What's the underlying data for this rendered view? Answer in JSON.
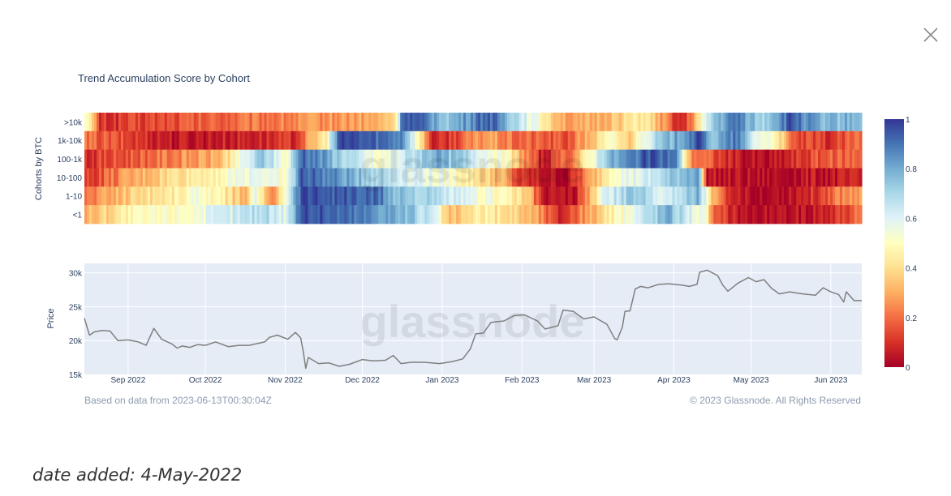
{
  "close_icon": "close-icon",
  "date_added": "date added: 4-May-2022",
  "chart_data": [
    {
      "type": "heatmap",
      "title": "Trend Accumulation Score by Cohort",
      "ylabel": "Cohorts by BTC",
      "rows": [
        ">10k",
        "1k-10k",
        "100-1k",
        "10-100",
        "1-10",
        "<1"
      ],
      "x_range": [
        "2022-08-15",
        "2023-06-13"
      ],
      "colorscale": [
        "#a50026",
        "#d73027",
        "#f46d43",
        "#fdae61",
        "#fee090",
        "#ffffbf",
        "#e0f3f8",
        "#abd9e9",
        "#74add1",
        "#4575b4",
        "#313695"
      ],
      "colorbar_ticks": [
        0,
        0.2,
        0.4,
        0.6,
        0.8,
        1
      ],
      "colorbar_tick_labels": [
        "0",
        "0.2",
        "0.4",
        "0.6",
        "0.8",
        "1"
      ],
      "segments": [
        [
          [
            0,
            0.6
          ],
          [
            2,
            0.1
          ],
          [
            38,
            0.3
          ],
          [
            40,
            0.4
          ],
          [
            41,
            0.98
          ],
          [
            47,
            0.75
          ],
          [
            52,
            0.95
          ],
          [
            60,
            0.4
          ],
          [
            63,
            0.25
          ],
          [
            68,
            0.35
          ],
          [
            72,
            0.45
          ],
          [
            77,
            0.05
          ],
          [
            81,
            0.75
          ],
          [
            84,
            0.9
          ],
          [
            87,
            0.7
          ],
          [
            91,
            0.95
          ],
          [
            95,
            0.75
          ],
          [
            100,
            0.8
          ]
        ],
        [
          [
            0,
            0.2
          ],
          [
            12,
            0.05
          ],
          [
            27,
            0.1
          ],
          [
            31,
            0.45
          ],
          [
            33,
            0.98
          ],
          [
            41,
            0.88
          ],
          [
            45,
            0.05
          ],
          [
            52,
            0.3
          ],
          [
            55,
            0.2
          ],
          [
            62,
            0.15
          ],
          [
            68,
            0.5
          ],
          [
            70,
            0.35
          ],
          [
            72,
            0.6
          ],
          [
            77,
            0.85
          ],
          [
            79,
            0.95
          ],
          [
            81,
            0.75
          ],
          [
            84,
            0.9
          ],
          [
            86,
            0.6
          ],
          [
            89,
            0.5
          ],
          [
            91,
            0.15
          ],
          [
            96,
            0.1
          ],
          [
            100,
            0.2
          ]
        ],
        [
          [
            0,
            0.1
          ],
          [
            17,
            0.3
          ],
          [
            21,
            0.6
          ],
          [
            23,
            0.75
          ],
          [
            26,
            0.5
          ],
          [
            28,
            0.95
          ],
          [
            38,
            0.5
          ],
          [
            45,
            0.8
          ],
          [
            49,
            0.7
          ],
          [
            54,
            0.5
          ],
          [
            59,
            0.05
          ],
          [
            63,
            0.25
          ],
          [
            67,
            0.75
          ],
          [
            70,
            0.85
          ],
          [
            72,
            0.95
          ],
          [
            76,
            0.9
          ],
          [
            78,
            0.25
          ],
          [
            84,
            0.05
          ],
          [
            88,
            0.02
          ],
          [
            94,
            0.15
          ],
          [
            100,
            0.2
          ]
        ],
        [
          [
            0,
            0.1
          ],
          [
            5,
            0.25
          ],
          [
            11,
            0.4
          ],
          [
            18,
            0.5
          ],
          [
            22,
            0.6
          ],
          [
            26,
            0.5
          ],
          [
            28,
            0.95
          ],
          [
            38,
            0.7
          ],
          [
            48,
            0.5
          ],
          [
            54,
            0.3
          ],
          [
            56,
            0.1
          ],
          [
            62,
            0.02
          ],
          [
            66,
            0.35
          ],
          [
            68,
            0.55
          ],
          [
            72,
            0.6
          ],
          [
            79,
            0.85
          ],
          [
            80,
            0.05
          ],
          [
            88,
            0.02
          ],
          [
            94,
            0.05
          ],
          [
            100,
            0.05
          ]
        ],
        [
          [
            0,
            0.2
          ],
          [
            7,
            0.4
          ],
          [
            12,
            0.45
          ],
          [
            15,
            0.55
          ],
          [
            21,
            0.3
          ],
          [
            22,
            0.6
          ],
          [
            24,
            0.2
          ],
          [
            28,
            0.98
          ],
          [
            38,
            0.9
          ],
          [
            39,
            0.8
          ],
          [
            46,
            0.65
          ],
          [
            50,
            0.55
          ],
          [
            54,
            0.5
          ],
          [
            57,
            0.35
          ],
          [
            59,
            0.05
          ],
          [
            63,
            0.02
          ],
          [
            67,
            0.6
          ],
          [
            71,
            0.75
          ],
          [
            75,
            0.6
          ],
          [
            79,
            0.8
          ],
          [
            81,
            0.3
          ],
          [
            83,
            0.05
          ],
          [
            88,
            0.02
          ],
          [
            94,
            0.1
          ],
          [
            96,
            0.2
          ],
          [
            100,
            0.3
          ]
        ],
        [
          [
            0,
            0.3
          ],
          [
            5,
            0.45
          ],
          [
            15,
            0.55
          ],
          [
            23,
            0.7
          ],
          [
            26,
            0.6
          ],
          [
            28,
            0.98
          ],
          [
            38,
            0.85
          ],
          [
            42,
            0.75
          ],
          [
            45,
            0.6
          ],
          [
            47,
            0.3
          ],
          [
            51,
            0.45
          ],
          [
            55,
            0.4
          ],
          [
            58,
            0.3
          ],
          [
            61,
            0.08
          ],
          [
            67,
            0.4
          ],
          [
            70,
            0.55
          ],
          [
            75,
            0.8
          ],
          [
            80,
            0.5
          ],
          [
            81,
            0.15
          ],
          [
            85,
            0.05
          ],
          [
            90,
            0.02
          ],
          [
            96,
            0.1
          ],
          [
            100,
            0.2
          ]
        ]
      ]
    },
    {
      "type": "line",
      "ylabel": "Price",
      "x_tick_labels": [
        "Sep 2022",
        "Oct 2022",
        "Nov 2022",
        "Dec 2022",
        "Jan 2023",
        "Feb 2023",
        "Mar 2023",
        "Apr 2023",
        "May 2023",
        "Jun 2023"
      ],
      "y_tick_values": [
        15000,
        20000,
        25000,
        30000
      ],
      "y_tick_labels": [
        "15k",
        "20k",
        "25k",
        "30k"
      ],
      "ylim": [
        15000,
        31400
      ],
      "xlim": [
        "2022-08-15",
        "2023-06-13"
      ],
      "series": [
        {
          "color": "#7f7f7f",
          "x": [
            "2022-08-15",
            "2022-08-17",
            "2022-08-19",
            "2022-08-22",
            "2022-08-25",
            "2022-08-28",
            "2022-09-01",
            "2022-09-05",
            "2022-09-08",
            "2022-09-11",
            "2022-09-14",
            "2022-09-18",
            "2022-09-20",
            "2022-09-22",
            "2022-09-25",
            "2022-09-28",
            "2022-10-01",
            "2022-10-05",
            "2022-10-10",
            "2022-10-14",
            "2022-10-18",
            "2022-10-24",
            "2022-10-26",
            "2022-10-29",
            "2022-11-02",
            "2022-11-05",
            "2022-11-07",
            "2022-11-08",
            "2022-11-09",
            "2022-11-10",
            "2022-11-14",
            "2022-11-18",
            "2022-11-22",
            "2022-11-26",
            "2022-12-01",
            "2022-12-05",
            "2022-12-10",
            "2022-12-13",
            "2022-12-16",
            "2022-12-20",
            "2022-12-25",
            "2022-12-31",
            "2023-01-05",
            "2023-01-09",
            "2023-01-12",
            "2023-01-14",
            "2023-01-17",
            "2023-01-20",
            "2023-01-25",
            "2023-01-29",
            "2023-02-02",
            "2023-02-07",
            "2023-02-10",
            "2023-02-15",
            "2023-02-17",
            "2023-02-21",
            "2023-02-25",
            "2023-03-01",
            "2023-03-06",
            "2023-03-09",
            "2023-03-10",
            "2023-03-12",
            "2023-03-13",
            "2023-03-15",
            "2023-03-17",
            "2023-03-19",
            "2023-03-22",
            "2023-03-26",
            "2023-03-30",
            "2023-04-04",
            "2023-04-07",
            "2023-04-10",
            "2023-04-11",
            "2023-04-14",
            "2023-04-18",
            "2023-04-20",
            "2023-04-22",
            "2023-04-26",
            "2023-04-30",
            "2023-05-03",
            "2023-05-06",
            "2023-05-09",
            "2023-05-12",
            "2023-05-16",
            "2023-05-21",
            "2023-05-26",
            "2023-05-29",
            "2023-06-01",
            "2023-06-04",
            "2023-06-06",
            "2023-06-07",
            "2023-06-10",
            "2023-06-13"
          ],
          "y": [
            23300,
            20800,
            21300,
            21500,
            21400,
            20000,
            20100,
            19800,
            19300,
            21800,
            20200,
            19500,
            18900,
            19200,
            19000,
            19400,
            19300,
            19800,
            19100,
            19300,
            19300,
            19800,
            20500,
            20800,
            20200,
            21200,
            20400,
            18500,
            15900,
            17500,
            16600,
            16700,
            16200,
            16500,
            17200,
            17000,
            17100,
            17800,
            16600,
            16800,
            16800,
            16600,
            16900,
            17300,
            18800,
            21000,
            21100,
            22700,
            22900,
            23700,
            23800,
            22900,
            21700,
            22200,
            24500,
            24300,
            23200,
            23500,
            22400,
            20300,
            20100,
            22000,
            24300,
            24400,
            27600,
            28000,
            27800,
            28300,
            28400,
            28200,
            28000,
            28300,
            30100,
            30400,
            29600,
            28200,
            27300,
            28500,
            29300,
            28700,
            29000,
            27700,
            26900,
            27200,
            26900,
            26700,
            27800,
            27200,
            26800,
            25700,
            27200,
            25900,
            25900
          ]
        }
      ]
    }
  ],
  "footer_left": "Based on data from 2023-06-13T00:30:04Z",
  "footer_right": "© 2023 Glassnode. All Rights Reserved",
  "watermark": "glassnode"
}
